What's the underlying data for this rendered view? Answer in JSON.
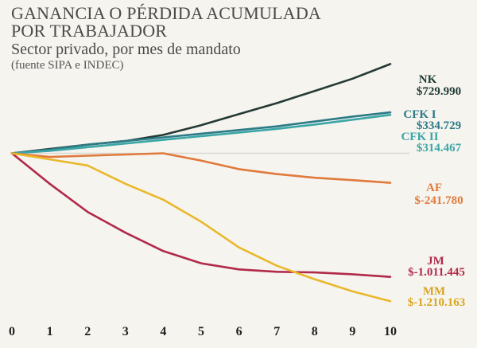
{
  "header": {
    "title_line1": "GANANCIA O PÉRDIDA ACUMULADA",
    "title_line2": "POR TRABAJADOR",
    "subtitle": "Sector privado, por mes de mandato",
    "source": "(fuente SIPA e INDEC)"
  },
  "chart_data": {
    "type": "line",
    "x": [
      0,
      1,
      2,
      3,
      4,
      5,
      6,
      7,
      8,
      9,
      10
    ],
    "xlim": [
      0,
      10
    ],
    "ylim": [
      -1300000,
      850000
    ],
    "grid": false,
    "baseline": 0,
    "series": [
      {
        "name": "NK",
        "value_label": "$729.990",
        "color": "#243a35",
        "values": [
          0,
          35000,
          70000,
          100000,
          150000,
          230000,
          320000,
          410000,
          510000,
          610000,
          729990
        ]
      },
      {
        "name": "CFK I",
        "value_label": "$334.729",
        "color": "#2c7a86",
        "values": [
          0,
          30000,
          70000,
          100000,
          130000,
          160000,
          190000,
          220000,
          260000,
          300000,
          334729
        ]
      },
      {
        "name": "CFK II",
        "value_label": "$314.467",
        "color": "#3aa6a6",
        "values": [
          0,
          20000,
          50000,
          80000,
          110000,
          140000,
          170000,
          200000,
          235000,
          275000,
          314467
        ]
      },
      {
        "name": "AF",
        "value_label": "$-241.780",
        "color": "#e07a3c",
        "values": [
          0,
          -30000,
          -20000,
          -10000,
          0,
          -60000,
          -130000,
          -170000,
          -200000,
          -220000,
          -241780
        ]
      },
      {
        "name": "JM",
        "value_label": "$-1.011.445",
        "color": "#b02a4a",
        "values": [
          0,
          -250000,
          -480000,
          -650000,
          -800000,
          -900000,
          -950000,
          -970000,
          -975000,
          -990000,
          -1011445
        ]
      },
      {
        "name": "MM",
        "value_label": "$-1.210.163",
        "color": "#e9b82c",
        "values": [
          0,
          -50000,
          -100000,
          -250000,
          -380000,
          -560000,
          -770000,
          -920000,
          -1030000,
          -1130000,
          -1210163
        ]
      }
    ],
    "label_colors": {
      "NK": "#1e3a34",
      "CFK I": "#2c7a86",
      "CFK II": "#3aa6a6",
      "AF": "#e07a3c",
      "JM": "#b02a4a",
      "MM": "#d9a520"
    }
  }
}
